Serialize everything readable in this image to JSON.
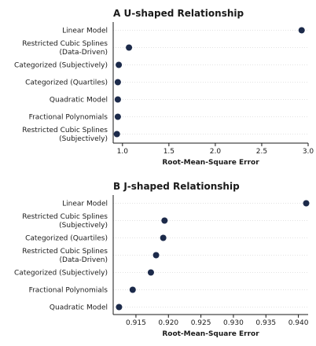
{
  "colors": {
    "point": "#1c2a4a",
    "axis": "#1a1a1a",
    "grid": "#d9d9d9"
  },
  "chart_data": [
    {
      "type": "scatter",
      "title": "A U-shaped Relationship",
      "xlabel": "Root-Mean-Square Error",
      "ylabel": "",
      "xlim": [
        0.9,
        3.0
      ],
      "xticks": [
        "1.0",
        "1.5",
        "2.0",
        "2.5",
        "3.0"
      ],
      "xtick_values": [
        1.0,
        1.5,
        2.0,
        2.5,
        3.0
      ],
      "grid": true,
      "categories": [
        [
          "Linear Model"
        ],
        [
          "Restricted Cubic Splines",
          "(Data-Driven)"
        ],
        [
          "Categorized (Subjectively)"
        ],
        [
          "Categorized (Quartiles)"
        ],
        [
          "Quadratic Model"
        ],
        [
          "Fractional Polynomials"
        ],
        [
          "Restricted Cubic Splines",
          "(Subjectively)"
        ]
      ],
      "values": [
        2.93,
        1.07,
        0.96,
        0.95,
        0.95,
        0.95,
        0.94
      ]
    },
    {
      "type": "scatter",
      "title": "B J-shaped Relationship",
      "xlabel": "Root-Mean-Square Error",
      "ylabel": "",
      "xlim": [
        0.9115,
        0.9415
      ],
      "xticks": [
        "0.915",
        "0.920",
        "0.925",
        "0.930",
        "0.935",
        "0.940"
      ],
      "xtick_values": [
        0.915,
        0.92,
        0.925,
        0.93,
        0.935,
        0.94
      ],
      "grid": true,
      "categories": [
        [
          "Linear Model"
        ],
        [
          "Restricted Cubic Splines",
          "(Subjectively)"
        ],
        [
          "Categorized (Quartiles)"
        ],
        [
          "Restricted Cubic Splines",
          "(Data-Driven)"
        ],
        [
          "Categorized (Subjectively)"
        ],
        [
          "Fractional Polynomials"
        ],
        [
          "Quadratic Model"
        ]
      ],
      "values": [
        0.9412,
        0.9194,
        0.9192,
        0.9181,
        0.9173,
        0.9145,
        0.9124
      ]
    }
  ]
}
